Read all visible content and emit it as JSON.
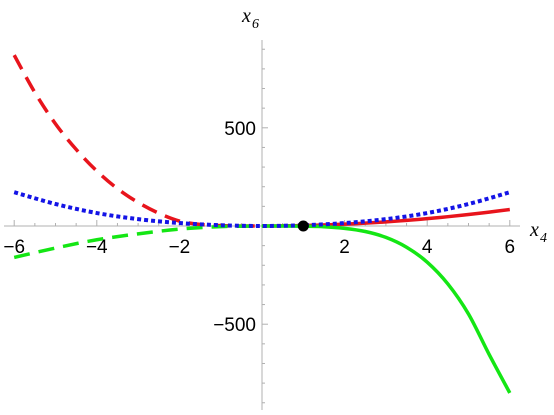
{
  "chart_data": {
    "type": "line",
    "xlabel": "x",
    "xlabel_sub": "4",
    "ylabel": "x",
    "ylabel_sub": "6",
    "xlim": [
      -6.3,
      6.2
    ],
    "ylim": [
      -950,
      1000
    ],
    "x_ticks": [
      -6,
      -4,
      -2,
      2,
      4,
      6
    ],
    "x_tick_labels": [
      "−6",
      "−4",
      "−2",
      "2",
      "4",
      "6"
    ],
    "y_ticks": [
      500,
      -500
    ],
    "y_tick_labels": [
      "500",
      "−500"
    ],
    "grid": false,
    "series": [
      {
        "color": "#e8141c",
        "dash": "solid",
        "x": [
          0,
          0.5,
          1,
          1.5,
          2,
          2.5,
          3,
          3.5,
          4,
          4.5,
          5,
          5.5,
          6
        ],
        "y": [
          0,
          0.6,
          2.3,
          5.3,
          9.4,
          14.6,
          21,
          28.6,
          37.4,
          47.4,
          58.4,
          70.7,
          84
        ]
      },
      {
        "color": "#e8141c",
        "dash": "dashed",
        "x": [
          -6,
          -5.5,
          -5,
          -4.5,
          -4,
          -3.5,
          -3,
          -2.5,
          -2,
          -1.5,
          -1,
          -0.5,
          0
        ],
        "y": [
          870,
          680,
          520,
          390,
          280,
          190,
          120,
          65,
          25,
          8,
          2,
          0,
          0
        ]
      },
      {
        "color": "#14e614",
        "dash": "solid",
        "x": [
          0,
          0.5,
          1,
          1.5,
          2,
          2.5,
          3,
          3.5,
          4,
          4.5,
          5,
          5.5,
          6
        ],
        "y": [
          0,
          -0.1,
          -1,
          -3.5,
          -12,
          -28,
          -58,
          -108,
          -184,
          -295,
          -448,
          -654,
          -850
        ]
      },
      {
        "color": "#14e614",
        "dash": "dashed",
        "x": [
          -6,
          -5,
          -4,
          -3,
          -2,
          -1,
          0
        ],
        "y": [
          -160,
          -112,
          -70,
          -40,
          -16,
          -3,
          0
        ]
      },
      {
        "color": "#1414e6",
        "dash": "dotted",
        "x": [
          -6,
          -5,
          -4,
          -3,
          -2,
          -1,
          0,
          1,
          2,
          3,
          4,
          5,
          6
        ],
        "y": [
          172,
          112,
          66,
          35,
          15,
          4,
          0,
          4,
          15,
          35,
          66,
          112,
          172
        ],
        "y_scale_right": 0.41
      }
    ],
    "marker": {
      "x": 1,
      "y": 0,
      "color": "#000000"
    }
  }
}
